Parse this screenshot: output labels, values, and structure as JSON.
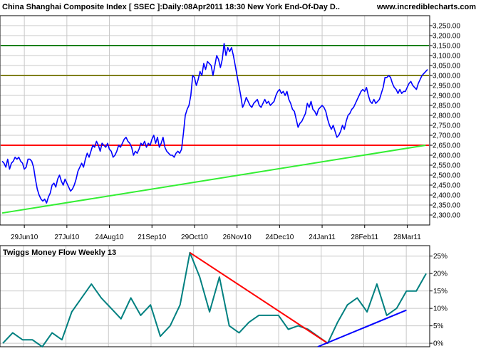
{
  "header": {
    "title": "China Shanghai Composite Index [ SSEC ]:Daily:08Apr2011 18:30 New York End-Of-Day D..",
    "site": "www.incrediblecharts.com"
  },
  "colors": {
    "price_line": "#0000ff",
    "support_h": "#ff0000",
    "resist_top": "#008000",
    "resist_mid": "#808000",
    "uptrend": "#33ee33",
    "money_flow": "#008080",
    "mf_downtrend": "#ff0000",
    "mf_uptrend": "#0000ff",
    "grid": "#c8c8c8"
  },
  "chart_data": [
    {
      "type": "line",
      "title": "China Shanghai Composite Index [ SSEC ]:Daily:08Apr2011 18:30 New York End-Of-Day D..",
      "x_labels": [
        "29Jun10",
        "27Jul10",
        "24Aug10",
        "21Sep10",
        "29Oct10",
        "26Nov10",
        "24Dec10",
        "24Jan11",
        "28Feb11",
        "28Mar11"
      ],
      "y_ticks": [
        "2,300.00",
        "2,350.00",
        "2,400.00",
        "2,450.00",
        "2,500.00",
        "2,550.00",
        "2,600.00",
        "2,650.00",
        "2,700.00",
        "2,750.00",
        "2,800.00",
        "2,850.00",
        "2,900.00",
        "2,950.00",
        "3,000.00",
        "3,050.00",
        "3,100.00",
        "3,150.00",
        "3,200.00",
        "3,250.00"
      ],
      "ylim": [
        2250,
        3300
      ],
      "grid": true,
      "series": [
        {
          "values": [
            2570,
            2560,
            2540,
            2580,
            2530,
            2560,
            2570,
            2590,
            2580,
            2590,
            2570,
            2560,
            2530,
            2540,
            2580,
            2580,
            2570,
            2540,
            2480,
            2430,
            2400,
            2380,
            2370,
            2380,
            2360,
            2390,
            2410,
            2450,
            2460,
            2440,
            2480,
            2500,
            2470,
            2450,
            2480,
            2460,
            2440,
            2420,
            2430,
            2450,
            2480,
            2520,
            2540,
            2560,
            2540,
            2580,
            2610,
            2590,
            2620,
            2650,
            2640,
            2670,
            2650,
            2620,
            2660,
            2650,
            2640,
            2660,
            2630,
            2620,
            2590,
            2600,
            2620,
            2650,
            2640,
            2660,
            2680,
            2690,
            2670,
            2660,
            2640,
            2600,
            2620,
            2610,
            2630,
            2660,
            2650,
            2670,
            2640,
            2660,
            2650,
            2680,
            2700,
            2660,
            2690,
            2640,
            2660,
            2690,
            2640,
            2620,
            2610,
            2600,
            2600,
            2590,
            2610,
            2620,
            2610,
            2630,
            2710,
            2800,
            2830,
            2850,
            2900,
            3000,
            2990,
            2950,
            2980,
            3020,
            3000,
            3060,
            3030,
            3070,
            3060,
            3050,
            3000,
            3050,
            3100,
            3080,
            3040,
            3080,
            3160,
            3100,
            3140,
            3120,
            3140,
            3100,
            3050,
            3000,
            2950,
            2900,
            2840,
            2860,
            2890,
            2870,
            2850,
            2840,
            2860,
            2870,
            2880,
            2850,
            2840,
            2860,
            2880,
            2860,
            2870,
            2850,
            2860,
            2870,
            2900,
            2920,
            2930,
            2910,
            2920,
            2900,
            2920,
            2880,
            2860,
            2830,
            2820,
            2780,
            2740,
            2760,
            2770,
            2790,
            2810,
            2860,
            2840,
            2870,
            2830,
            2820,
            2800,
            2830,
            2840,
            2850,
            2840,
            2820,
            2780,
            2750,
            2730,
            2750,
            2720,
            2690,
            2700,
            2720,
            2750,
            2730,
            2770,
            2800,
            2810,
            2830,
            2840,
            2860,
            2880,
            2900,
            2920,
            2930,
            2920,
            2940,
            2900,
            2870,
            2860,
            2880,
            2860,
            2870,
            2880,
            2910,
            2940,
            2990,
            2990,
            3000,
            2990,
            2960,
            2940,
            2930,
            2910,
            2930,
            2910,
            2920,
            2920,
            2940,
            2960,
            2970,
            2950,
            2940,
            2930,
            2960,
            2980,
            3000,
            3010,
            3020,
            3030
          ],
          "color": "#0000ff"
        }
      ],
      "annotations": [
        {
          "type": "hline",
          "value": 3150,
          "color": "#008000"
        },
        {
          "type": "hline",
          "value": 3000,
          "color": "#808000"
        },
        {
          "type": "hline",
          "value": 2650,
          "color": "#ff0000"
        },
        {
          "type": "trendline",
          "from": {
            "index": 0,
            "value": 2310
          },
          "to": {
            "index": 229,
            "value": 2650
          },
          "color": "#33ee33"
        }
      ]
    },
    {
      "type": "line",
      "title": "Twiggs Money Flow Weekly 13",
      "y_ticks": [
        "0%",
        "5%",
        "10%",
        "15%",
        "20%",
        "25%"
      ],
      "ylim": [
        -1,
        28
      ],
      "grid": true,
      "series": [
        {
          "values": [
            0,
            3,
            1,
            1,
            -1,
            3,
            1,
            9,
            13,
            17,
            13,
            10,
            7,
            13,
            8,
            11,
            2,
            5,
            11,
            26,
            19,
            9,
            19,
            5,
            3,
            6,
            8,
            8,
            8,
            4,
            5,
            4,
            2,
            0,
            6,
            11,
            13,
            9,
            17,
            8,
            10,
            15,
            15,
            20
          ],
          "color": "#008080"
        }
      ],
      "annotations": [
        {
          "type": "trendline",
          "from": {
            "index": 19,
            "value": 26
          },
          "to": {
            "index": 33,
            "value": 0
          },
          "color": "#ff0000"
        },
        {
          "type": "trendline",
          "from": {
            "index": 32,
            "value": -1
          },
          "to": {
            "index": 41,
            "value": 9.5
          },
          "color": "#0000ff"
        }
      ]
    }
  ]
}
